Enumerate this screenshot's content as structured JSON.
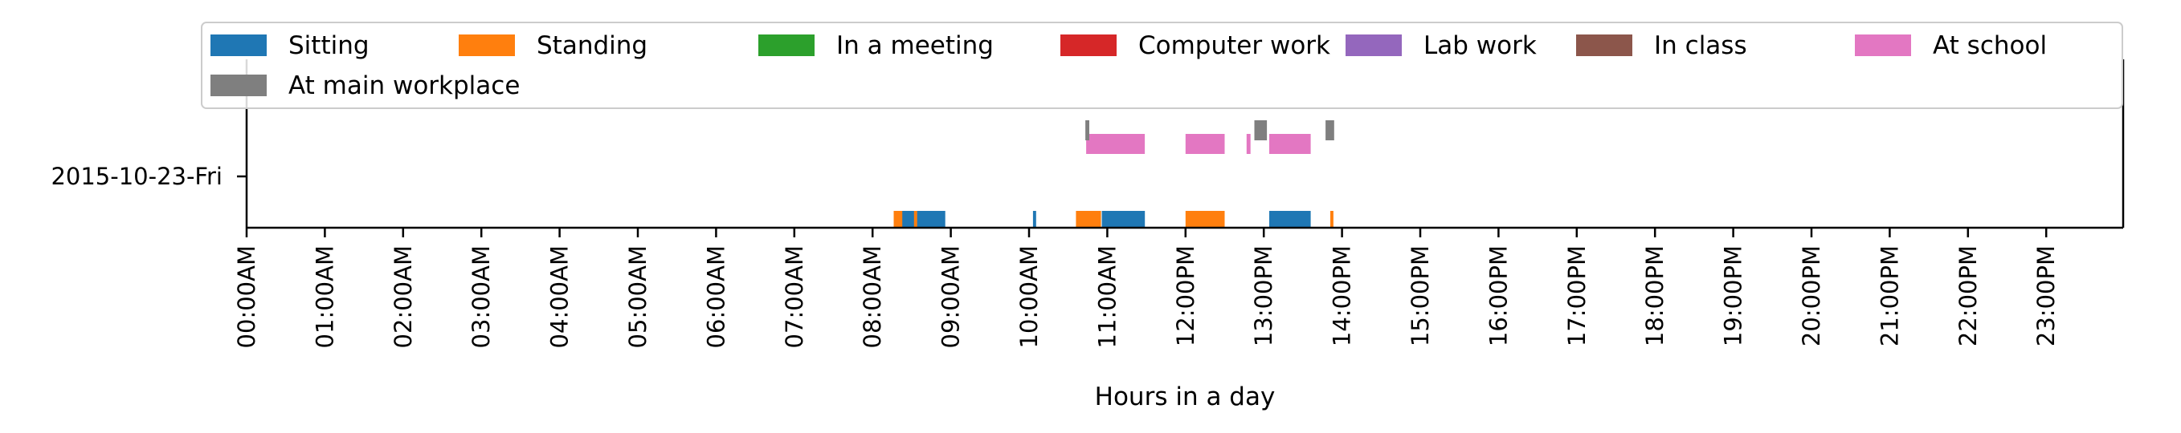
{
  "chart_data": {
    "type": "timeline",
    "xlabel": "Hours in a day",
    "ylabel": "",
    "xlim_hours": [
      0,
      24
    ],
    "x_ticks": [
      "00:00AM",
      "01:00AM",
      "02:00AM",
      "03:00AM",
      "04:00AM",
      "05:00AM",
      "06:00AM",
      "07:00AM",
      "08:00AM",
      "09:00AM",
      "10:00AM",
      "11:00AM",
      "12:00PM",
      "13:00PM",
      "14:00PM",
      "15:00PM",
      "16:00PM",
      "17:00PM",
      "18:00PM",
      "19:00PM",
      "20:00PM",
      "21:00PM",
      "22:00PM",
      "23:00PM"
    ],
    "rows": [
      {
        "label": "2015-10-23-Fri"
      }
    ],
    "legend": {
      "placement": "top",
      "columns": 7,
      "entries": [
        {
          "name": "Sitting",
          "color": "#1f77b4"
        },
        {
          "name": "Standing",
          "color": "#ff7f0e"
        },
        {
          "name": "In a meeting",
          "color": "#2ca02c"
        },
        {
          "name": "Computer work",
          "color": "#d62728"
        },
        {
          "name": "Lab work",
          "color": "#9467bd"
        },
        {
          "name": "In class",
          "color": "#8c564b"
        },
        {
          "name": "At school",
          "color": "#e377c2"
        },
        {
          "name": "At main workplace",
          "color": "#7f7f7f"
        }
      ]
    },
    "series": [
      {
        "name": "Sitting",
        "level": "bottom",
        "intervals": [
          [
            8.37,
            8.93
          ],
          [
            10.05,
            10.09
          ],
          [
            10.93,
            11.48
          ],
          [
            13.07,
            13.6
          ]
        ]
      },
      {
        "name": "Standing",
        "level": "bottom",
        "intervals": [
          [
            8.27,
            8.38
          ],
          [
            8.53,
            8.57
          ],
          [
            10.6,
            10.92
          ],
          [
            12.0,
            12.5
          ],
          [
            13.85,
            13.89
          ]
        ]
      },
      {
        "name": "At school",
        "level": "top",
        "intervals": [
          [
            10.73,
            11.48
          ],
          [
            12.0,
            12.5
          ],
          [
            12.78,
            12.83
          ],
          [
            13.07,
            13.6
          ]
        ]
      },
      {
        "name": "At main workplace",
        "level": "upper",
        "intervals": [
          [
            10.72,
            10.77
          ],
          [
            12.88,
            13.04
          ],
          [
            13.79,
            13.9
          ]
        ]
      }
    ]
  }
}
